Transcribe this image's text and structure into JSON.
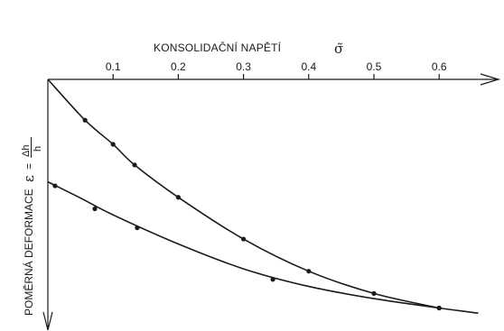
{
  "chart_data": {
    "type": "line",
    "title": "KONSOLIDAČNÍ NAPĚTÍ",
    "title_symbol": "σ̃",
    "xlabel": "KONSOLIDAČNÍ NAPĚTÍ σ̃",
    "ylabel": "POMĚRNÁ DEFORMACE",
    "ylabel_formula": {
      "symbol": "ε",
      "equals": "=",
      "numerator": "Δh",
      "denominator": "h"
    },
    "x_ticks": [
      "0.1",
      "0.2",
      "0.3",
      "0.4",
      "0.5",
      "0.6"
    ],
    "x_tick_values": [
      0.1,
      0.2,
      0.3,
      0.4,
      0.5,
      0.6
    ],
    "xlim": [
      0,
      0.66
    ],
    "ylim": [
      0,
      1
    ],
    "y_axis_direction": "downward",
    "grid": false,
    "series": [
      {
        "points": [
          [
            0.0,
            0.0
          ],
          [
            0.057,
            0.174
          ],
          [
            0.1,
            0.277
          ],
          [
            0.133,
            0.365
          ],
          [
            0.2,
            0.503
          ],
          [
            0.3,
            0.681
          ],
          [
            0.4,
            0.818
          ],
          [
            0.5,
            0.913
          ],
          [
            0.6,
            0.975
          ]
        ],
        "markers": [
          [
            0.057,
            0.174
          ],
          [
            0.1,
            0.277
          ],
          [
            0.133,
            0.365
          ],
          [
            0.2,
            0.503
          ],
          [
            0.3,
            0.681
          ],
          [
            0.4,
            0.818
          ],
          [
            0.5,
            0.913
          ],
          [
            0.6,
            0.975
          ]
        ]
      },
      {
        "points": [
          [
            0.0,
            0.437
          ],
          [
            0.05,
            0.506
          ],
          [
            0.1,
            0.578
          ],
          [
            0.2,
            0.702
          ],
          [
            0.3,
            0.808
          ],
          [
            0.4,
            0.883
          ],
          [
            0.5,
            0.935
          ],
          [
            0.6,
            0.975
          ],
          [
            0.66,
            0.997
          ]
        ],
        "markers": [
          [
            0.011,
            0.454
          ],
          [
            0.072,
            0.552
          ],
          [
            0.137,
            0.633
          ],
          [
            0.345,
            0.853
          ],
          [
            0.6,
            0.975
          ]
        ]
      }
    ]
  }
}
